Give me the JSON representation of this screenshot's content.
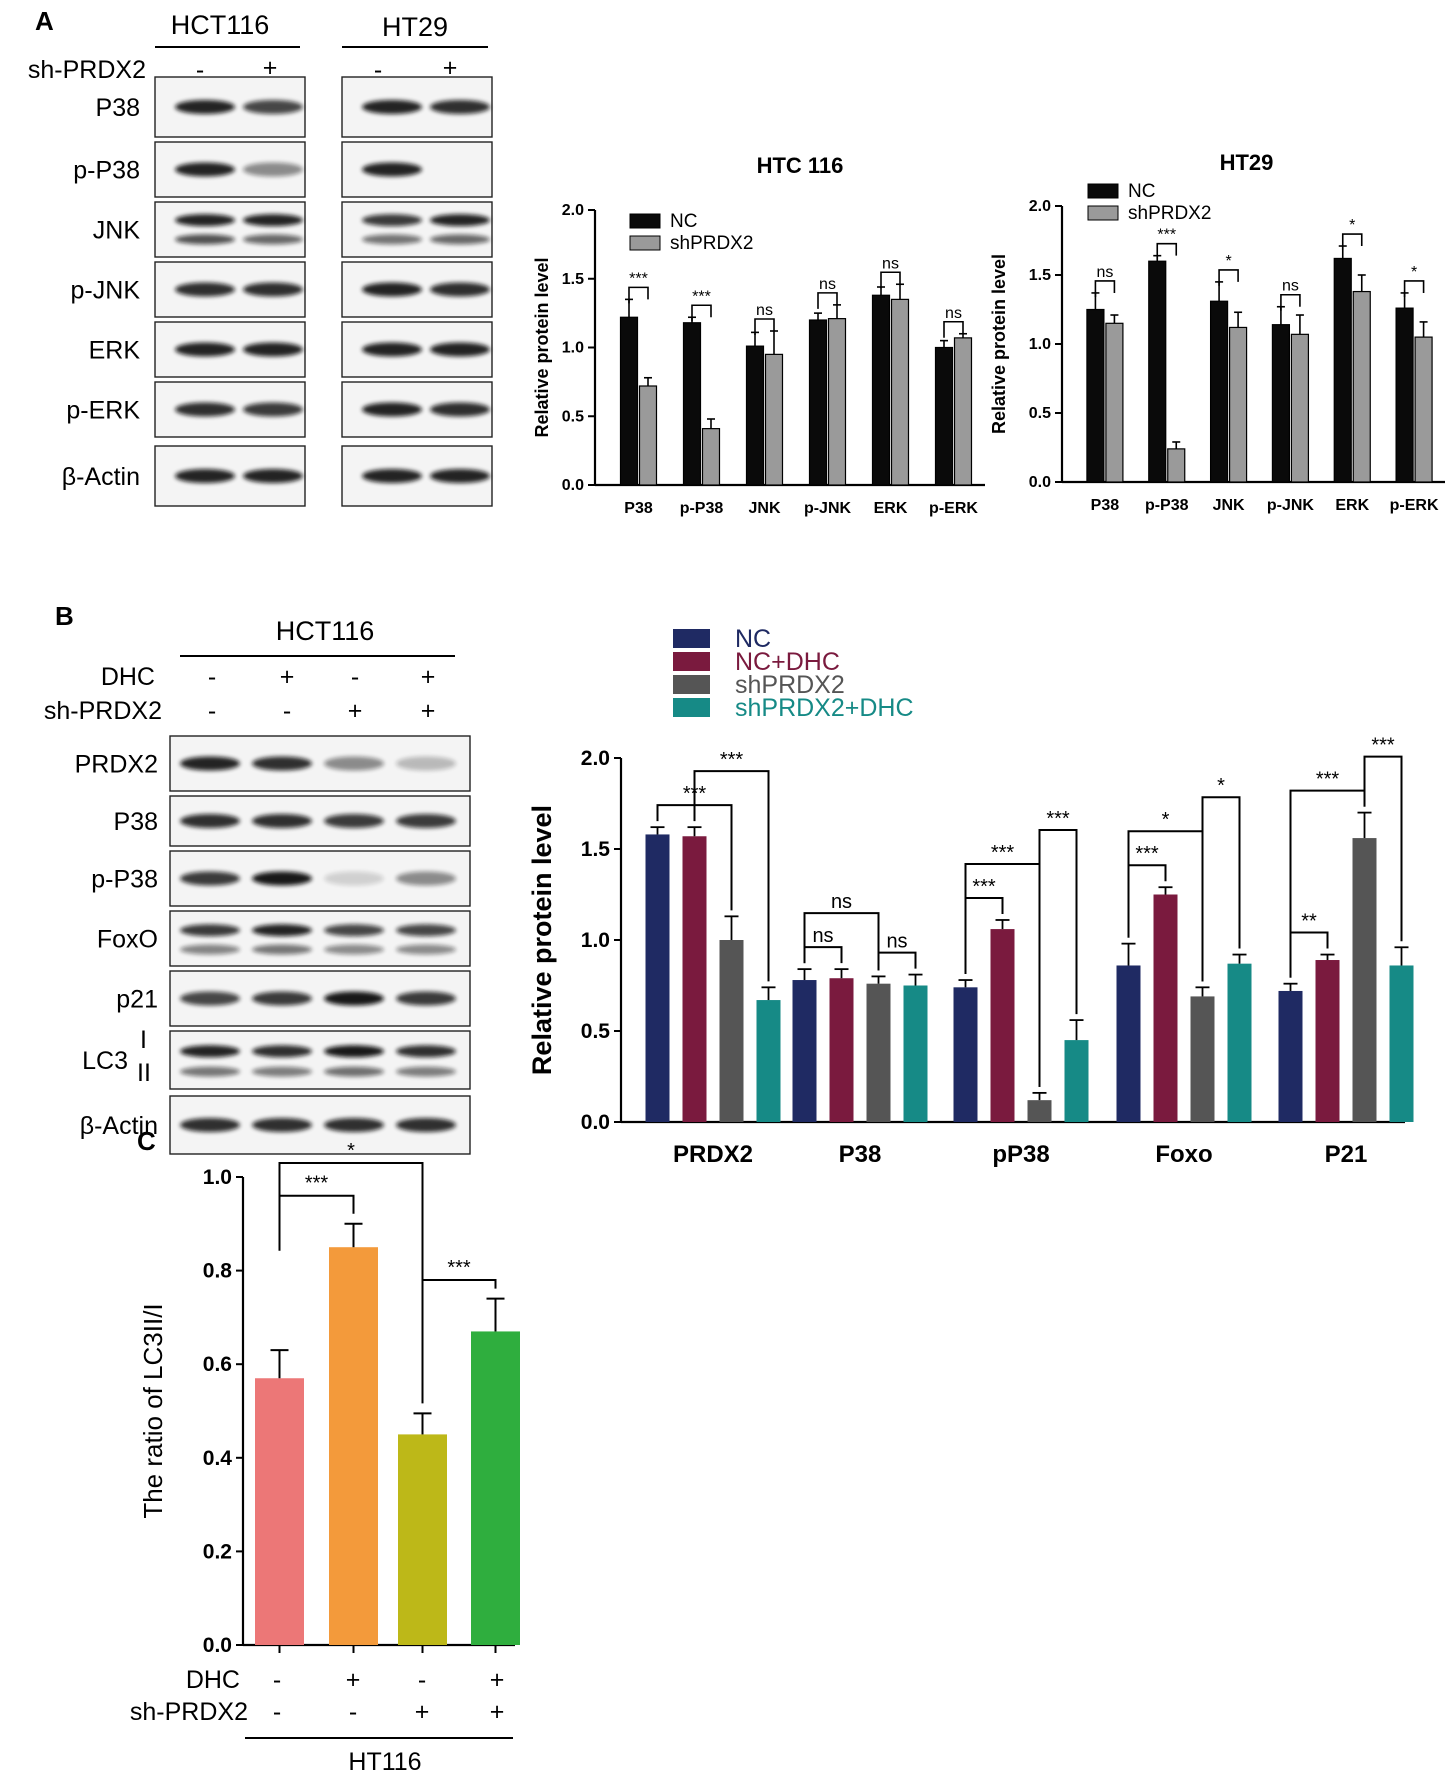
{
  "panels": {
    "A": {
      "label": "A",
      "cell_lines": [
        "HCT116",
        "HT29"
      ],
      "treatment_label": "sh-PRDX2",
      "lane_signs": [
        "-",
        "+"
      ],
      "blot_labels": [
        "P38",
        "p-P38",
        "JNK",
        "p-JNK",
        "ERK",
        "p-ERK",
        "β-Actin"
      ]
    },
    "B": {
      "label": "B",
      "cell_line": "HCT116",
      "treatments": [
        {
          "label": "DHC",
          "signs": [
            "-",
            "+",
            "-",
            "+"
          ]
        },
        {
          "label": "sh-PRDX2",
          "signs": [
            "-",
            "-",
            "+",
            "+"
          ]
        }
      ],
      "blot_labels": [
        "PRDX2",
        "P38",
        "p-P38",
        "FoxO",
        "p21",
        "LC3",
        "β-Actin"
      ],
      "lc3_bands": [
        "I",
        "II"
      ]
    },
    "C": {
      "label": "C",
      "treatments": [
        {
          "label": "DHC",
          "signs": [
            "-",
            "+",
            "-",
            "+"
          ]
        },
        {
          "label": "sh-PRDX2",
          "signs": [
            "-",
            "-",
            "+",
            "+"
          ]
        }
      ],
      "group_label": "HT116"
    }
  },
  "colors": {
    "nc_black": "#0a0a0a",
    "sh_gray": "#9a9a9a",
    "nc_navy": "#1f2a63",
    "nc_dhc": "#7a1a3e",
    "sh_dark": "#555555",
    "sh_dhc_teal": "#168a86",
    "c_pink": "#ec7777",
    "c_orange": "#f39a3b",
    "c_olive": "#bdb818",
    "c_green": "#2fae3e"
  },
  "chart_data": [
    {
      "id": "chartA1",
      "type": "bar",
      "title": "HTC 116",
      "ylabel": "Relative protein level",
      "xlabel": "",
      "ylim": [
        0,
        2.0
      ],
      "yticks": [
        "0.0",
        "0.5",
        "1.0",
        "1.5",
        "2.0"
      ],
      "categories": [
        "P38",
        "p-P38",
        "JNK",
        "p-JNK",
        "ERK",
        "p-ERK"
      ],
      "legend_position": "top-left",
      "series": [
        {
          "name": "NC",
          "values": [
            1.22,
            1.18,
            1.01,
            1.2,
            1.38,
            1.0
          ],
          "errors": [
            0.13,
            0.04,
            0.1,
            0.05,
            0.06,
            0.05
          ]
        },
        {
          "name": "shPRDX2",
          "values": [
            0.72,
            0.41,
            0.95,
            1.21,
            1.35,
            1.07
          ],
          "errors": [
            0.06,
            0.07,
            0.17,
            0.1,
            0.11,
            0.03
          ]
        }
      ],
      "significance": [
        "***",
        "***",
        "ns",
        "ns",
        "ns",
        "ns"
      ]
    },
    {
      "id": "chartA2",
      "type": "bar",
      "title": "HT29",
      "ylabel": "Relative protein level",
      "xlabel": "",
      "ylim": [
        0,
        2.0
      ],
      "yticks": [
        "0.0",
        "0.5",
        "1.0",
        "1.5",
        "2.0"
      ],
      "categories": [
        "P38",
        "p-P38",
        "JNK",
        "p-JNK",
        "ERK",
        "p-ERK"
      ],
      "legend_position": "top-left",
      "series": [
        {
          "name": "NC",
          "values": [
            1.25,
            1.6,
            1.31,
            1.14,
            1.62,
            1.26
          ],
          "errors": [
            0.12,
            0.04,
            0.14,
            0.13,
            0.09,
            0.11
          ]
        },
        {
          "name": "shPRDX2",
          "values": [
            1.15,
            0.24,
            1.12,
            1.07,
            1.38,
            1.05
          ],
          "errors": [
            0.06,
            0.05,
            0.11,
            0.14,
            0.12,
            0.11
          ]
        }
      ],
      "significance": [
        "ns",
        "***",
        "*",
        "ns",
        "*",
        "*"
      ]
    },
    {
      "id": "chartB",
      "type": "bar",
      "title": "",
      "ylabel": "Relative protein level",
      "xlabel": "",
      "ylim": [
        0,
        2.0
      ],
      "yticks": [
        "0.0",
        "0.5",
        "1.0",
        "1.5",
        "2.0"
      ],
      "categories": [
        "PRDX2",
        "P38",
        "pP38",
        "Foxo",
        "P21"
      ],
      "legend_position": "top",
      "series": [
        {
          "name": "NC",
          "values": [
            1.58,
            0.78,
            0.74,
            0.86,
            0.72
          ],
          "errors": [
            0.04,
            0.06,
            0.04,
            0.12,
            0.04
          ]
        },
        {
          "name": "NC+DHC",
          "values": [
            1.57,
            0.79,
            1.06,
            1.25,
            0.89
          ],
          "errors": [
            0.05,
            0.05,
            0.05,
            0.04,
            0.03
          ]
        },
        {
          "name": "shPRDX2",
          "values": [
            1.0,
            0.76,
            0.12,
            0.69,
            1.56
          ],
          "errors": [
            0.13,
            0.04,
            0.04,
            0.05,
            0.14
          ]
        },
        {
          "name": "shPRDX2+DHC",
          "values": [
            0.67,
            0.75,
            0.45,
            0.87,
            0.86
          ],
          "errors": [
            0.07,
            0.06,
            0.11,
            0.05,
            0.1
          ]
        }
      ],
      "significance": [
        {
          "cat": 0,
          "pair": [
            0,
            2
          ],
          "label": "***"
        },
        {
          "cat": 0,
          "pair": [
            1,
            3
          ],
          "label": "***"
        },
        {
          "cat": 1,
          "pair": [
            0,
            1
          ],
          "label": "ns"
        },
        {
          "cat": 1,
          "pair": [
            2,
            3
          ],
          "label": "ns"
        },
        {
          "cat": 1,
          "pair": [
            0,
            2
          ],
          "label": "ns"
        },
        {
          "cat": 2,
          "pair": [
            0,
            1
          ],
          "label": "***"
        },
        {
          "cat": 2,
          "pair": [
            0,
            2
          ],
          "label": "***"
        },
        {
          "cat": 2,
          "pair": [
            2,
            3
          ],
          "label": "***"
        },
        {
          "cat": 3,
          "pair": [
            0,
            1
          ],
          "label": "***"
        },
        {
          "cat": 3,
          "pair": [
            0,
            2
          ],
          "label": "*"
        },
        {
          "cat": 3,
          "pair": [
            2,
            3
          ],
          "label": "*"
        },
        {
          "cat": 4,
          "pair": [
            0,
            1
          ],
          "label": "**"
        },
        {
          "cat": 4,
          "pair": [
            0,
            2
          ],
          "label": "***"
        },
        {
          "cat": 4,
          "pair": [
            2,
            3
          ],
          "label": "***"
        }
      ]
    },
    {
      "id": "chartC",
      "type": "bar",
      "title": "",
      "ylabel": "The ratio of LC3II/I",
      "xlabel": "",
      "ylim": [
        0,
        1.0
      ],
      "yticks": [
        "0.0",
        "0.2",
        "0.4",
        "0.6",
        "0.8",
        "1.0"
      ],
      "values": [
        0.57,
        0.85,
        0.45,
        0.67
      ],
      "errors": [
        0.06,
        0.05,
        0.045,
        0.07
      ],
      "significance": [
        {
          "pair": [
            0,
            1
          ],
          "label": "***"
        },
        {
          "pair": [
            0,
            2
          ],
          "label": "*"
        },
        {
          "pair": [
            2,
            3
          ],
          "label": "***"
        }
      ]
    }
  ]
}
